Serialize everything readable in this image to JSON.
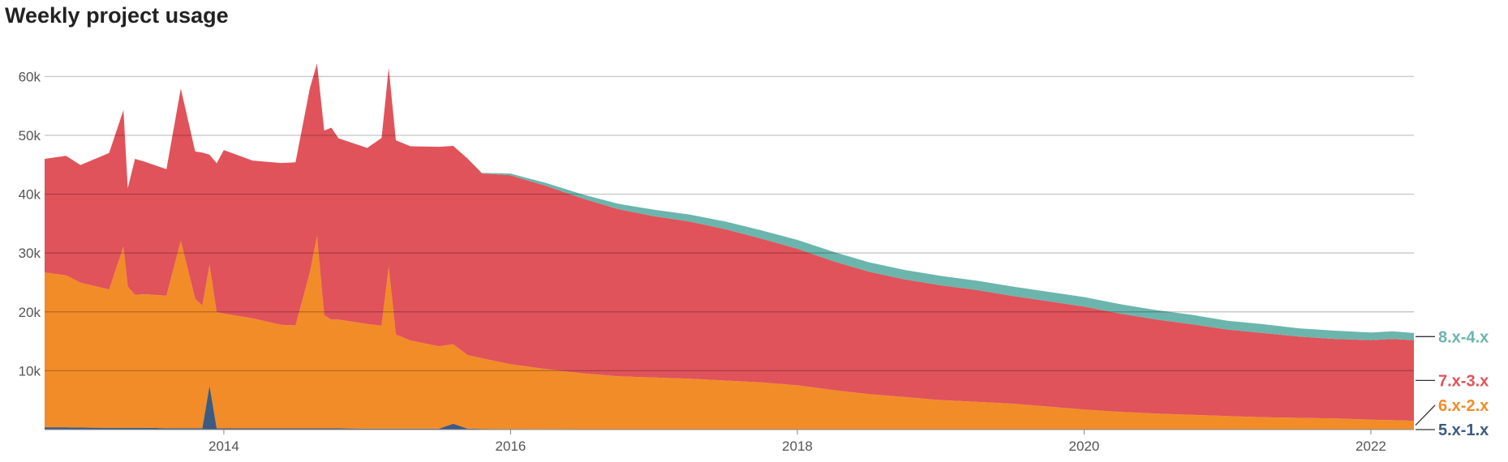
{
  "chart_data": {
    "type": "area",
    "title": "Weekly project usage",
    "stacked": true,
    "xlabel": "",
    "ylabel": "",
    "xlim": [
      2012.75,
      2022.3
    ],
    "ylim": [
      0,
      65000
    ],
    "yticks": [
      10000,
      20000,
      30000,
      40000,
      50000,
      60000
    ],
    "ytick_labels": [
      "10k",
      "20k",
      "30k",
      "40k",
      "50k",
      "60k"
    ],
    "xticks": [
      2014,
      2016,
      2018,
      2020,
      2022
    ],
    "xtick_labels": [
      "2014",
      "2016",
      "2018",
      "2020",
      "2022"
    ],
    "grid": true,
    "legend_placement": "right, labels at series end",
    "x": [
      2012.75,
      2012.9,
      2013.0,
      2013.2,
      2013.3,
      2013.33,
      2013.38,
      2013.45,
      2013.6,
      2013.7,
      2013.8,
      2013.85,
      2013.9,
      2013.95,
      2014.0,
      2014.2,
      2014.4,
      2014.5,
      2014.6,
      2014.65,
      2014.7,
      2014.75,
      2014.8,
      2015.0,
      2015.1,
      2015.15,
      2015.2,
      2015.3,
      2015.5,
      2015.6,
      2015.7,
      2015.8,
      2016.0,
      2016.25,
      2016.5,
      2016.75,
      2017.0,
      2017.25,
      2017.5,
      2017.75,
      2018.0,
      2018.25,
      2018.5,
      2018.75,
      2019.0,
      2019.25,
      2019.5,
      2019.75,
      2020.0,
      2020.25,
      2020.5,
      2020.75,
      2021.0,
      2021.25,
      2021.5,
      2021.75,
      2022.0,
      2022.15,
      2022.3
    ],
    "series": [
      {
        "name": "5.x-1.x",
        "color": "#3d5a80",
        "values": [
          400,
          400,
          350,
          300,
          300,
          300,
          300,
          300,
          250,
          250,
          250,
          250,
          7500,
          250,
          200,
          200,
          200,
          200,
          200,
          200,
          200,
          200,
          200,
          150,
          150,
          150,
          150,
          150,
          150,
          1000,
          150,
          120,
          100,
          80,
          70,
          60,
          50,
          40,
          30,
          30,
          20,
          20,
          20,
          20,
          10,
          10,
          10,
          10,
          10,
          10,
          10,
          0,
          0,
          0,
          0,
          0,
          0,
          0,
          0
        ]
      },
      {
        "name": "6.x-2.x",
        "color": "#f28c28",
        "values": [
          26300,
          25800,
          24600,
          23500,
          30800,
          24000,
          22600,
          22700,
          22500,
          31800,
          22000,
          20800,
          20500,
          19700,
          19500,
          18700,
          17600,
          17500,
          26500,
          32700,
          19200,
          18500,
          18500,
          17800,
          17500,
          27500,
          16000,
          15000,
          14000,
          13500,
          12500,
          12000,
          11000,
          10200,
          9500,
          9000,
          8800,
          8600,
          8300,
          8000,
          7500,
          6700,
          6000,
          5500,
          5000,
          4700,
          4400,
          3900,
          3400,
          3000,
          2700,
          2500,
          2300,
          2100,
          2000,
          1900,
          1700,
          1600,
          1500
        ]
      },
      {
        "name": "7.x-3.x",
        "color": "#e0535a",
        "values": [
          19300,
          20300,
          20000,
          23200,
          23200,
          16700,
          23100,
          22500,
          21500,
          25900,
          25000,
          26000,
          18700,
          25300,
          27800,
          26800,
          27500,
          27700,
          31300,
          29300,
          31400,
          32600,
          30800,
          29900,
          31900,
          33800,
          33000,
          33000,
          33900,
          33700,
          33400,
          31400,
          32100,
          31100,
          29700,
          28400,
          27400,
          26700,
          25700,
          24400,
          23200,
          21900,
          20800,
          20000,
          19500,
          19000,
          18300,
          17900,
          17500,
          16700,
          16000,
          15400,
          14700,
          14300,
          13800,
          13500,
          13500,
          13800,
          13700
        ]
      },
      {
        "name": "8.x-4.x",
        "color": "#6bb5ad",
        "values": [
          0,
          0,
          0,
          0,
          0,
          0,
          0,
          0,
          0,
          0,
          0,
          0,
          0,
          0,
          0,
          0,
          0,
          0,
          0,
          0,
          0,
          0,
          0,
          0,
          0,
          0,
          0,
          0,
          0,
          0,
          0,
          100,
          300,
          500,
          700,
          900,
          1100,
          1200,
          1300,
          1400,
          1500,
          1600,
          1600,
          1600,
          1600,
          1600,
          1600,
          1600,
          1600,
          1600,
          1600,
          1600,
          1500,
          1500,
          1400,
          1400,
          1300,
          1300,
          1200
        ]
      }
    ]
  }
}
